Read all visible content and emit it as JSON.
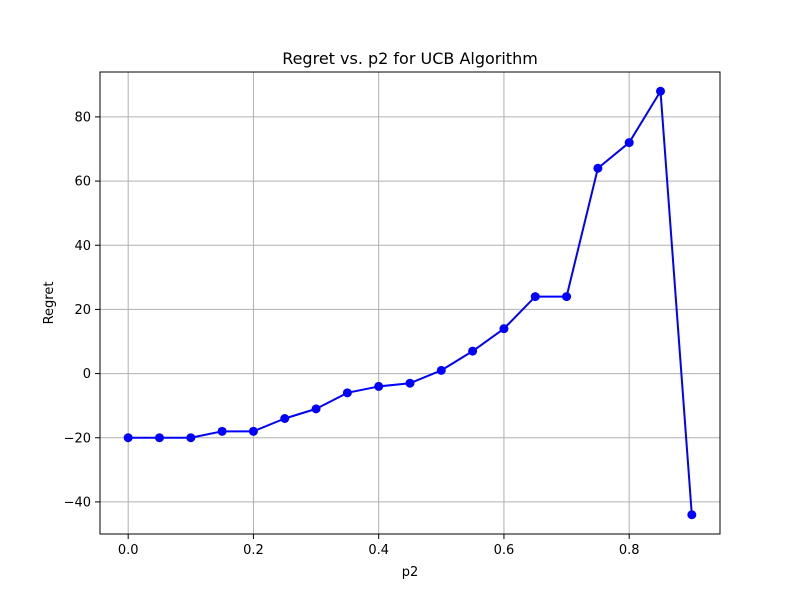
{
  "chart_data": {
    "type": "line",
    "title": "Regret vs. p2 for UCB Algorithm",
    "xlabel": "p2",
    "ylabel": "Regret",
    "xlim": [
      -0.045,
      0.945
    ],
    "ylim": [
      -50,
      94
    ],
    "grid": true,
    "x_ticks": [
      0.0,
      0.2,
      0.4,
      0.6,
      0.8
    ],
    "x_tick_labels": [
      "0.0",
      "0.2",
      "0.4",
      "0.6",
      "0.8"
    ],
    "y_ticks": [
      -40,
      -20,
      0,
      20,
      40,
      60,
      80
    ],
    "y_tick_labels": [
      "−40",
      "−20",
      "0",
      "20",
      "40",
      "60",
      "80"
    ],
    "series": [
      {
        "color": "#0000ff",
        "marker": "circle",
        "x": [
          0.0,
          0.05,
          0.1,
          0.15,
          0.2,
          0.25,
          0.3,
          0.35,
          0.4,
          0.45,
          0.5,
          0.55,
          0.6,
          0.65,
          0.7,
          0.75,
          0.8,
          0.85,
          0.9
        ],
        "y": [
          -20,
          -20,
          -20,
          -18,
          -18,
          -14,
          -11,
          -6,
          -4,
          -3,
          1,
          7,
          14,
          24,
          24,
          64,
          72,
          88,
          -44
        ]
      }
    ]
  }
}
